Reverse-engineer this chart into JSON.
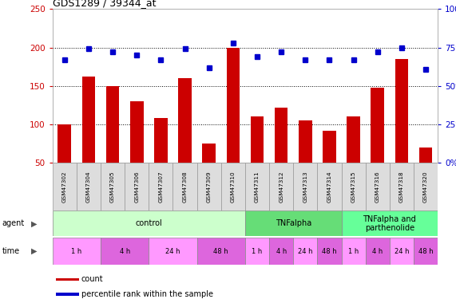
{
  "title": "GDS1289 / 39344_at",
  "samples": [
    "GSM47302",
    "GSM47304",
    "GSM47305",
    "GSM47306",
    "GSM47307",
    "GSM47308",
    "GSM47309",
    "GSM47310",
    "GSM47311",
    "GSM47312",
    "GSM47313",
    "GSM47314",
    "GSM47315",
    "GSM47316",
    "GSM47318",
    "GSM47320"
  ],
  "counts": [
    100,
    162,
    150,
    130,
    108,
    160,
    75,
    200,
    110,
    122,
    105,
    92,
    110,
    148,
    185,
    70
  ],
  "percentiles": [
    67,
    74,
    72,
    70,
    67,
    74,
    62,
    78,
    69,
    72,
    67,
    67,
    67,
    72,
    75,
    61
  ],
  "ylim_left": [
    50,
    250
  ],
  "ylim_right": [
    0,
    100
  ],
  "yticks_left": [
    50,
    100,
    150,
    200,
    250
  ],
  "yticks_right": [
    0,
    25,
    50,
    75,
    100
  ],
  "bar_color": "#cc0000",
  "dot_color": "#0000cc",
  "grid_dotted_at": [
    100,
    150,
    200
  ],
  "agent_groups": [
    {
      "label": "control",
      "start": 0,
      "end": 8,
      "color": "#ccffcc"
    },
    {
      "label": "TNFalpha",
      "start": 8,
      "end": 12,
      "color": "#66dd77"
    },
    {
      "label": "TNFalpha and\nparthenolide",
      "start": 12,
      "end": 16,
      "color": "#66ff99"
    }
  ],
  "time_groups": [
    {
      "label": "1 h",
      "start": 0,
      "end": 2,
      "color": "#ff99ff"
    },
    {
      "label": "4 h",
      "start": 2,
      "end": 4,
      "color": "#dd66dd"
    },
    {
      "label": "24 h",
      "start": 4,
      "end": 6,
      "color": "#ff99ff"
    },
    {
      "label": "48 h",
      "start": 6,
      "end": 8,
      "color": "#dd66dd"
    },
    {
      "label": "1 h",
      "start": 8,
      "end": 9,
      "color": "#ff99ff"
    },
    {
      "label": "4 h",
      "start": 9,
      "end": 10,
      "color": "#dd66dd"
    },
    {
      "label": "24 h",
      "start": 10,
      "end": 11,
      "color": "#ff99ff"
    },
    {
      "label": "48 h",
      "start": 11,
      "end": 12,
      "color": "#dd66dd"
    },
    {
      "label": "1 h",
      "start": 12,
      "end": 13,
      "color": "#ff99ff"
    },
    {
      "label": "4 h",
      "start": 13,
      "end": 14,
      "color": "#dd66dd"
    },
    {
      "label": "24 h",
      "start": 14,
      "end": 15,
      "color": "#ff99ff"
    },
    {
      "label": "48 h",
      "start": 15,
      "end": 16,
      "color": "#dd66dd"
    }
  ],
  "legend_items": [
    {
      "label": "count",
      "color": "#cc0000"
    },
    {
      "label": "percentile rank within the sample",
      "color": "#0000cc"
    }
  ],
  "background_color": "#ffffff",
  "tick_color_left": "#cc0000",
  "tick_color_right": "#0000cc",
  "sample_cell_color": "#dddddd",
  "sample_cell_edge": "#999999"
}
